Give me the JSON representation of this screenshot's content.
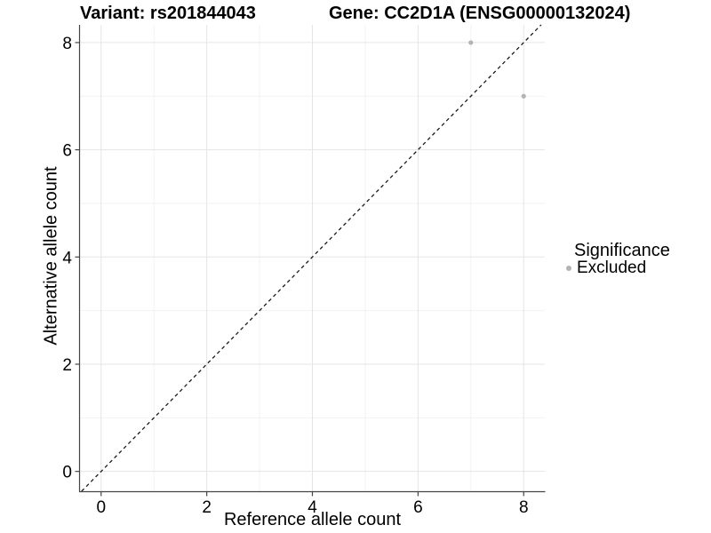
{
  "titles": {
    "left": "Variant: rs201844043",
    "right": "Gene: CC2D1A (ENSG00000132024)"
  },
  "chart_data": {
    "type": "scatter",
    "title_left": "Variant: rs201844043",
    "title_right": "Gene: CC2D1A (ENSG00000132024)",
    "xlabel": "Reference allele count",
    "ylabel": "Alternative allele count",
    "xlim": [
      -0.4,
      8.4
    ],
    "ylim": [
      -0.37,
      8.33
    ],
    "x_ticks": [
      0,
      2,
      4,
      6,
      8
    ],
    "y_ticks": [
      0,
      2,
      4,
      6,
      8
    ],
    "x_minor_ticks": [
      1,
      3,
      5,
      7
    ],
    "y_minor_ticks": [
      1,
      3,
      5,
      7
    ],
    "grid": true,
    "series": [
      {
        "name": "Excluded",
        "color": "#b3b3b3",
        "points": [
          {
            "x": 7,
            "y": 8
          },
          {
            "x": 8,
            "y": 7
          }
        ]
      }
    ],
    "reference_line": {
      "type": "identity",
      "style": "dashed",
      "color": "#1a1a1a"
    },
    "legend": {
      "title": "Significance",
      "position": "right",
      "items": [
        {
          "label": "Excluded",
          "color": "#b3b3b3"
        }
      ]
    }
  },
  "colors": {
    "background": "#ffffff",
    "grid_major": "#e5e5e5",
    "grid_minor": "#f2f2f2",
    "axis": "#454545",
    "text": "#000000",
    "point": "#b3b3b3"
  }
}
